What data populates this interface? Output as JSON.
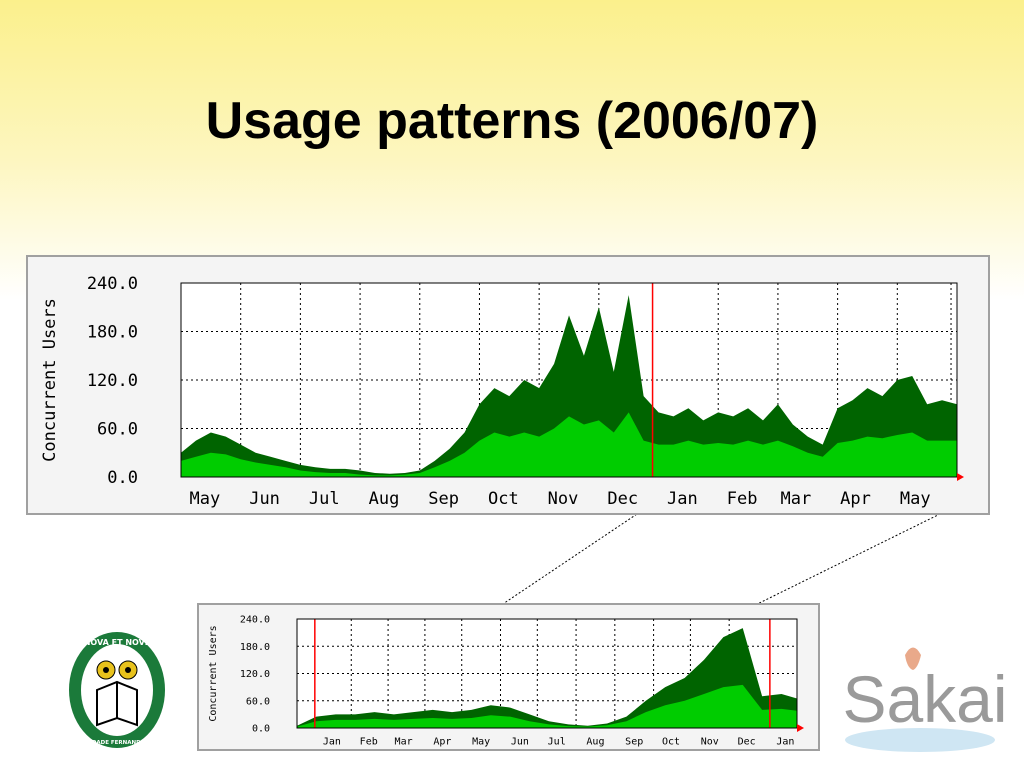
{
  "title": "Usage patterns (2006/07)",
  "chart_data": [
    {
      "type": "area",
      "ylabel": "Concurrent Users",
      "ylim": [
        0,
        240
      ],
      "yticks": [
        {
          "value": 0,
          "label": "0.0"
        },
        {
          "value": 60,
          "label": "60.0"
        },
        {
          "value": 120,
          "label": "120.0"
        },
        {
          "value": 180,
          "label": "180.0"
        },
        {
          "value": 240,
          "label": "240.0"
        }
      ],
      "xlim": [
        0,
        13
      ],
      "xticks": [
        {
          "value": 0.4,
          "label": "May"
        },
        {
          "value": 1.4,
          "label": "Jun"
        },
        {
          "value": 2.4,
          "label": "Jul"
        },
        {
          "value": 3.4,
          "label": "Aug"
        },
        {
          "value": 4.4,
          "label": "Sep"
        },
        {
          "value": 5.4,
          "label": "Oct"
        },
        {
          "value": 6.4,
          "label": "Nov"
        },
        {
          "value": 7.4,
          "label": "Dec"
        },
        {
          "value": 8.4,
          "label": "Jan"
        },
        {
          "value": 9.4,
          "label": "Feb"
        },
        {
          "value": 10.3,
          "label": "Mar"
        },
        {
          "value": 11.3,
          "label": "Apr"
        },
        {
          "value": 12.3,
          "label": "May"
        }
      ],
      "xgrid": [
        1,
        2,
        3,
        4,
        5,
        6,
        7,
        9,
        10,
        11,
        12,
        12.9
      ],
      "vlines": [
        7.9
      ],
      "grid": true,
      "x": [
        0,
        0.25,
        0.5,
        0.75,
        1,
        1.25,
        1.5,
        1.75,
        2,
        2.25,
        2.5,
        2.75,
        3,
        3.25,
        3.5,
        3.75,
        4,
        4.25,
        4.5,
        4.75,
        5,
        5.25,
        5.5,
        5.75,
        6,
        6.25,
        6.5,
        6.75,
        7,
        7.25,
        7.5,
        7.75,
        8,
        8.25,
        8.5,
        8.75,
        9,
        9.25,
        9.5,
        9.75,
        10,
        10.25,
        10.5,
        10.75,
        11,
        11.25,
        11.5,
        11.75,
        12,
        12.25,
        12.5,
        12.75,
        13
      ],
      "series": [
        {
          "color": "#006400",
          "values": [
            30,
            45,
            55,
            50,
            40,
            30,
            25,
            20,
            15,
            12,
            10,
            10,
            8,
            5,
            4,
            5,
            8,
            20,
            35,
            55,
            90,
            110,
            100,
            120,
            110,
            140,
            200,
            150,
            210,
            130,
            225,
            100,
            80,
            75,
            85,
            70,
            80,
            75,
            85,
            70,
            90,
            65,
            50,
            40,
            85,
            95,
            110,
            100,
            120,
            125,
            90,
            95,
            90
          ]
        },
        {
          "color": "#00cc00",
          "values": [
            20,
            25,
            30,
            28,
            22,
            18,
            15,
            12,
            8,
            6,
            5,
            5,
            3,
            2,
            2,
            3,
            5,
            12,
            20,
            30,
            45,
            55,
            50,
            55,
            50,
            60,
            75,
            65,
            70,
            55,
            80,
            45,
            40,
            40,
            45,
            40,
            42,
            40,
            45,
            40,
            45,
            38,
            30,
            25,
            42,
            45,
            50,
            48,
            52,
            55,
            45,
            45,
            45
          ]
        }
      ]
    },
    {
      "type": "area",
      "ylabel": "Concurrent Users",
      "ylim": [
        0,
        240
      ],
      "yticks": [
        {
          "value": 0,
          "label": "0.0"
        },
        {
          "value": 60,
          "label": "60.0"
        },
        {
          "value": 120,
          "label": "120.0"
        },
        {
          "value": 180,
          "label": "180.0"
        },
        {
          "value": 240,
          "label": "240.0"
        }
      ],
      "xlim": [
        0,
        12.9
      ],
      "xticks": [
        {
          "value": 0.9,
          "label": "Jan"
        },
        {
          "value": 1.85,
          "label": "Feb"
        },
        {
          "value": 2.75,
          "label": "Mar"
        },
        {
          "value": 3.75,
          "label": "Apr"
        },
        {
          "value": 4.75,
          "label": "May"
        },
        {
          "value": 5.75,
          "label": "Jun"
        },
        {
          "value": 6.7,
          "label": "Jul"
        },
        {
          "value": 7.7,
          "label": "Aug"
        },
        {
          "value": 8.7,
          "label": "Sep"
        },
        {
          "value": 9.65,
          "label": "Oct"
        },
        {
          "value": 10.65,
          "label": "Nov"
        },
        {
          "value": 11.6,
          "label": "Dec"
        },
        {
          "value": 12.6,
          "label": "Jan"
        }
      ],
      "xgrid": [
        1.4,
        2.35,
        3.3,
        4.25,
        5.25,
        6.2,
        7.2,
        8.2,
        9.2,
        10.15,
        11.15
      ],
      "vlines": [
        0.46,
        12.2
      ],
      "grid": true,
      "x": [
        0,
        0.5,
        1,
        1.5,
        2,
        2.5,
        3,
        3.5,
        4,
        4.5,
        5,
        5.5,
        6,
        6.5,
        7,
        7.5,
        8,
        8.5,
        9,
        9.5,
        10,
        10.5,
        11,
        11.5,
        12,
        12.5,
        12.9
      ],
      "series": [
        {
          "color": "#006400",
          "values": [
            5,
            25,
            30,
            30,
            35,
            30,
            35,
            40,
            35,
            40,
            50,
            45,
            30,
            15,
            8,
            5,
            10,
            25,
            60,
            90,
            110,
            150,
            200,
            220,
            70,
            75,
            65
          ]
        },
        {
          "color": "#00cc00",
          "values": [
            3,
            15,
            18,
            18,
            20,
            18,
            20,
            22,
            20,
            22,
            28,
            25,
            15,
            8,
            4,
            3,
            6,
            15,
            35,
            50,
            60,
            75,
            90,
            95,
            40,
            42,
            38
          ]
        }
      ]
    }
  ],
  "logos": {
    "left_top": "NOVA ET NOVE",
    "left_bottom": "UNIVERSIDADE FERNANDO PESSOA",
    "right": "Sakai"
  }
}
